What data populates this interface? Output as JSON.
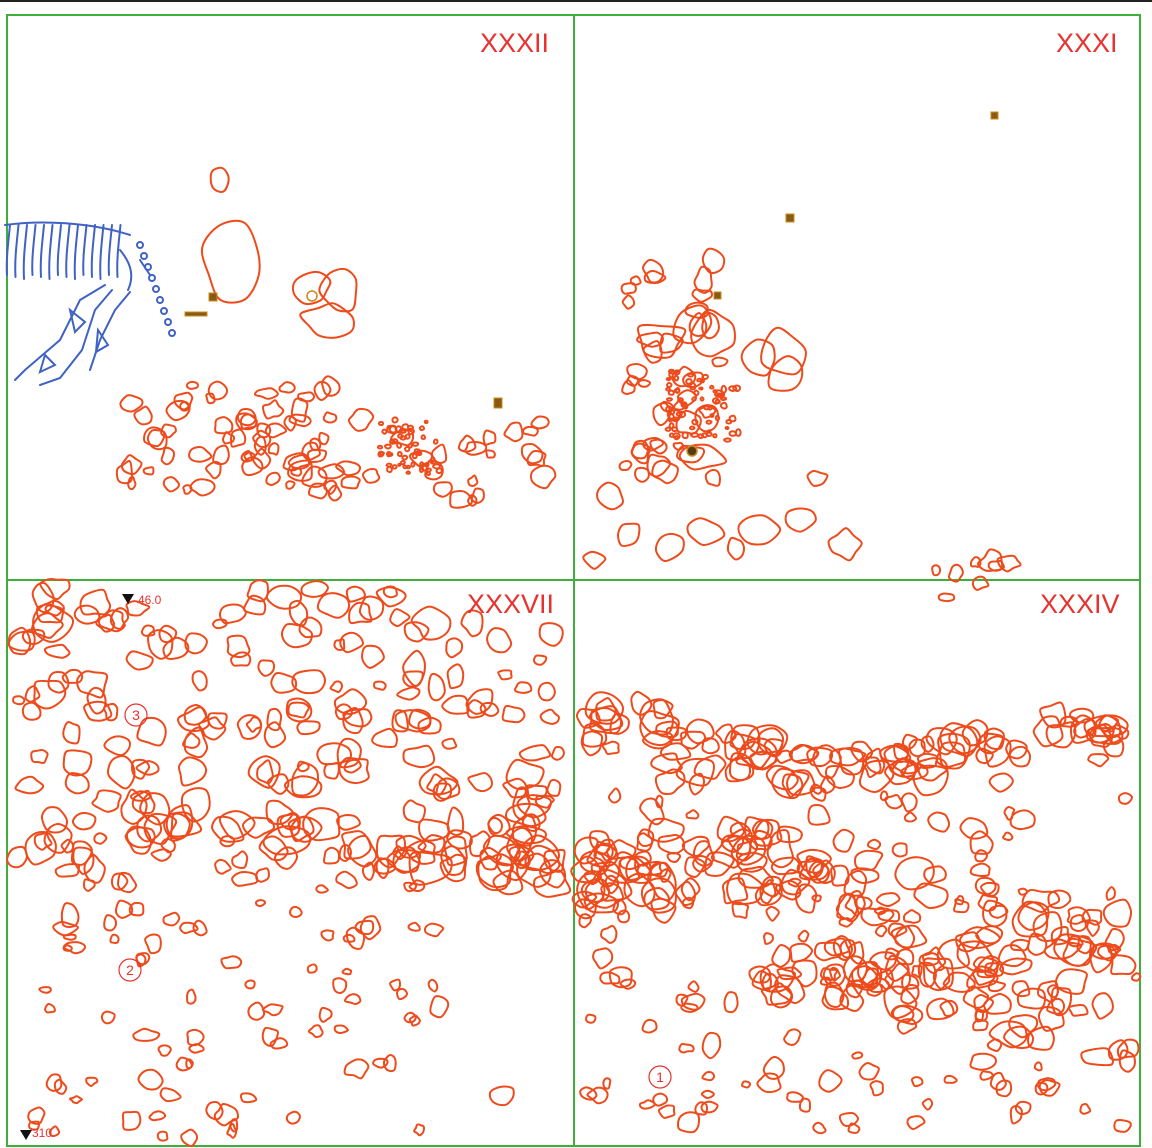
{
  "grid_squares": [
    {
      "id": "XXXII"
    },
    {
      "id": "XXXI"
    },
    {
      "id": "XXXVII"
    },
    {
      "id": "XXXIV"
    }
  ],
  "elevation_markers": [
    {
      "value": "46.0"
    },
    {
      "value": "310"
    }
  ],
  "circled_labels": [
    "1",
    "2",
    "3"
  ],
  "colors": {
    "grid_lines": "#3fae3a",
    "stones": "#ee4b1c",
    "skeleton": "#3f62c4",
    "finds": "#c98b22",
    "labels": "#e8322f"
  },
  "legend_icons": [
    "skeleton-icon",
    "stone-outline-icon",
    "find-marker-icon",
    "elevation-triangle-icon"
  ]
}
